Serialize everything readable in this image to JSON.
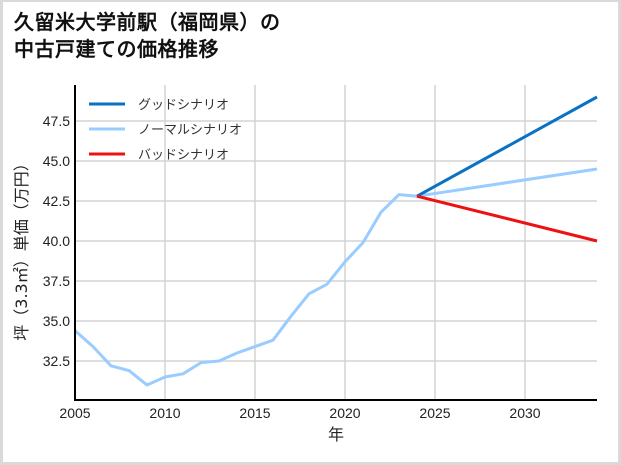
{
  "title": "久留米大学前駅（福岡県）の\n中古戸建ての価格推移",
  "chart_data": {
    "type": "line",
    "title": "久留米大学前駅（福岡県）の中古戸建ての価格推移",
    "xlabel": "年",
    "ylabel": "坪（3.3㎡）単価（万円）",
    "xlim": [
      2005,
      2034
    ],
    "ylim": [
      30.8,
      49.3
    ],
    "grid": true,
    "legend_position": "upper left",
    "x_ticks": [
      2005,
      2010,
      2015,
      2020,
      2025,
      2030
    ],
    "y_ticks": [
      32.5,
      35.0,
      37.5,
      40.0,
      42.5,
      45.0,
      47.5
    ],
    "x_tick_labels": [
      "2005",
      "2010",
      "2015",
      "2020",
      "2025",
      "2030"
    ],
    "y_tick_labels": [
      "32.5",
      "35.0",
      "37.5",
      "40.0",
      "42.5",
      "45.0",
      "47.5"
    ],
    "legend": [
      "グッドシナリオ",
      "ノーマルシナリオ",
      "バッドシナリオ"
    ],
    "series": [
      {
        "name": "グッドシナリオ",
        "color": "#0a72c4",
        "x": [
          2024,
          2034
        ],
        "values": [
          42.8,
          49.0
        ]
      },
      {
        "name": "ノーマルシナリオ",
        "color": "#99ccff",
        "x": [
          2005,
          2006,
          2007,
          2008,
          2009,
          2010,
          2011,
          2012,
          2013,
          2014,
          2015,
          2016,
          2017,
          2018,
          2019,
          2020,
          2021,
          2022,
          2023,
          2024,
          2034
        ],
        "values": [
          34.4,
          33.4,
          32.2,
          31.9,
          31.0,
          31.5,
          31.7,
          32.4,
          32.5,
          33.0,
          33.4,
          33.8,
          35.3,
          36.7,
          37.3,
          38.7,
          39.9,
          41.8,
          42.9,
          42.8,
          44.5
        ]
      },
      {
        "name": "バッドシナリオ",
        "color": "#ee1111",
        "x": [
          2024,
          2034
        ],
        "values": [
          42.8,
          40.0
        ]
      }
    ]
  }
}
